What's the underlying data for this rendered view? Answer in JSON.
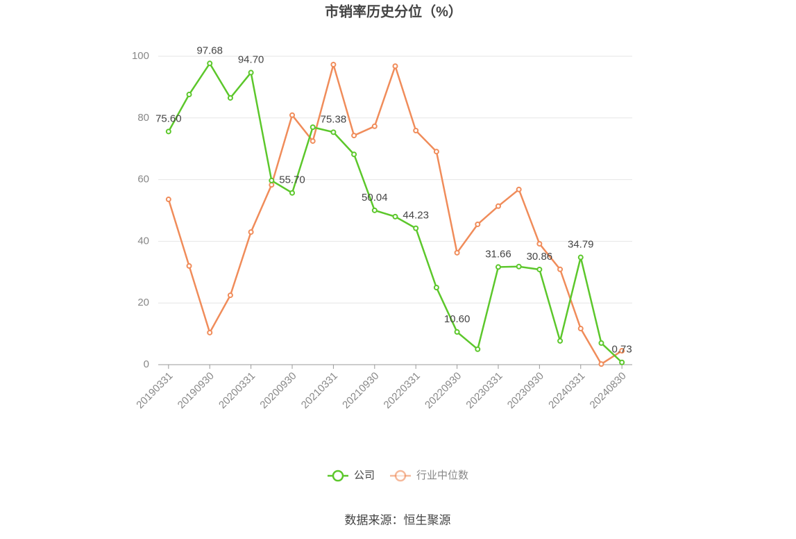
{
  "chart_data": {
    "type": "line",
    "title": "市销率历史分位（%）",
    "categories": [
      "20190331",
      null,
      "20190930",
      null,
      "20200331",
      null,
      "20200930",
      null,
      "20210331",
      null,
      "20210930",
      null,
      "20220331",
      null,
      "20220930",
      null,
      "20230331",
      null,
      "20230930",
      null,
      "20240331",
      null,
      "20240830"
    ],
    "series": [
      {
        "name": "公司",
        "color": "#5cc72b",
        "values": [
          75.6,
          87.6,
          97.68,
          86.5,
          94.7,
          59.7,
          55.7,
          77.0,
          75.38,
          68.2,
          50.04,
          48.0,
          44.23,
          25.0,
          10.6,
          5.0,
          31.66,
          31.8,
          30.86,
          7.7,
          34.79,
          7.0,
          0.73
        ],
        "value_labels": [
          "75.60",
          null,
          "97.68",
          null,
          "94.70",
          null,
          "55.70",
          null,
          "75.38",
          null,
          "50.04",
          null,
          "44.23",
          null,
          "10.60",
          null,
          "31.66",
          null,
          "30.86",
          null,
          "34.79",
          null,
          "0.73"
        ]
      },
      {
        "name": "行业中位数",
        "color": "#f08c5a",
        "values": [
          53.6,
          32.0,
          10.4,
          22.5,
          43.0,
          58.3,
          80.9,
          72.5,
          97.3,
          74.3,
          77.3,
          96.8,
          75.9,
          69.1,
          36.3,
          45.5,
          51.4,
          56.8,
          39.2,
          30.9,
          11.7,
          0.2,
          4.5
        ]
      }
    ],
    "ylim": [
      0,
      100
    ],
    "yticks": [
      0,
      20,
      40,
      60,
      80,
      100
    ],
    "grid": true,
    "source": "数据来源：恒生聚源"
  }
}
